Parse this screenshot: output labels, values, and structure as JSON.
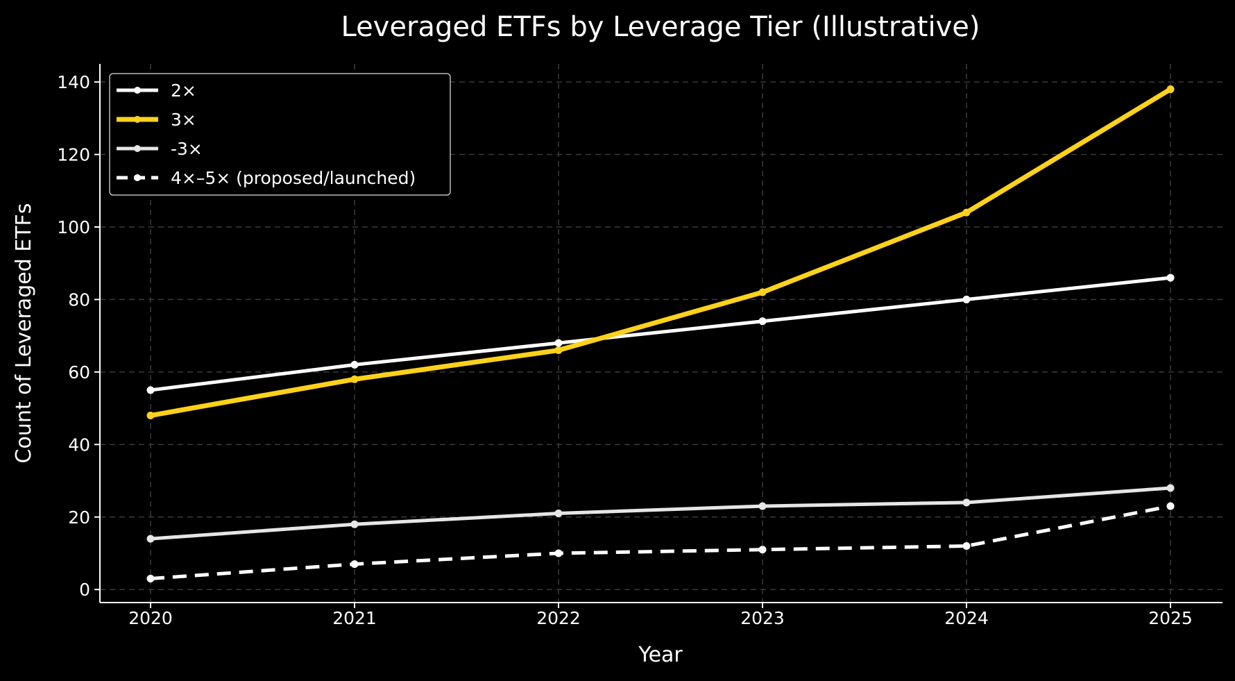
{
  "chart_data": {
    "type": "line",
    "title": "Leveraged ETFs by Leverage Tier (Illustrative)",
    "xlabel": "Year",
    "ylabel": "Count of Leveraged ETFs",
    "x": [
      "2020",
      "2021",
      "2022",
      "2023",
      "2024",
      "2025"
    ],
    "ylim": [
      0,
      145
    ],
    "yticks": [
      0,
      20,
      40,
      60,
      80,
      100,
      120,
      140
    ],
    "grid": true,
    "legend_position": "top-left",
    "background": "#000000",
    "series": [
      {
        "name": "2×",
        "values": [
          55,
          62,
          68,
          74,
          80,
          86
        ],
        "color": "#ffffff",
        "dashed": false,
        "width": 5
      },
      {
        "name": "3×",
        "values": [
          48,
          58,
          66,
          82,
          104,
          138
        ],
        "color": "#ffd21a",
        "dashed": false,
        "width": 7
      },
      {
        "name": "-3×",
        "values": [
          14,
          18,
          21,
          23,
          24,
          28
        ],
        "color": "#e6e6e6",
        "dashed": false,
        "width": 5
      },
      {
        "name": "4×–5× (proposed/launched)",
        "values": [
          3,
          7,
          10,
          11,
          12,
          23
        ],
        "color": "#ffffff",
        "dashed": true,
        "width": 5
      }
    ]
  }
}
